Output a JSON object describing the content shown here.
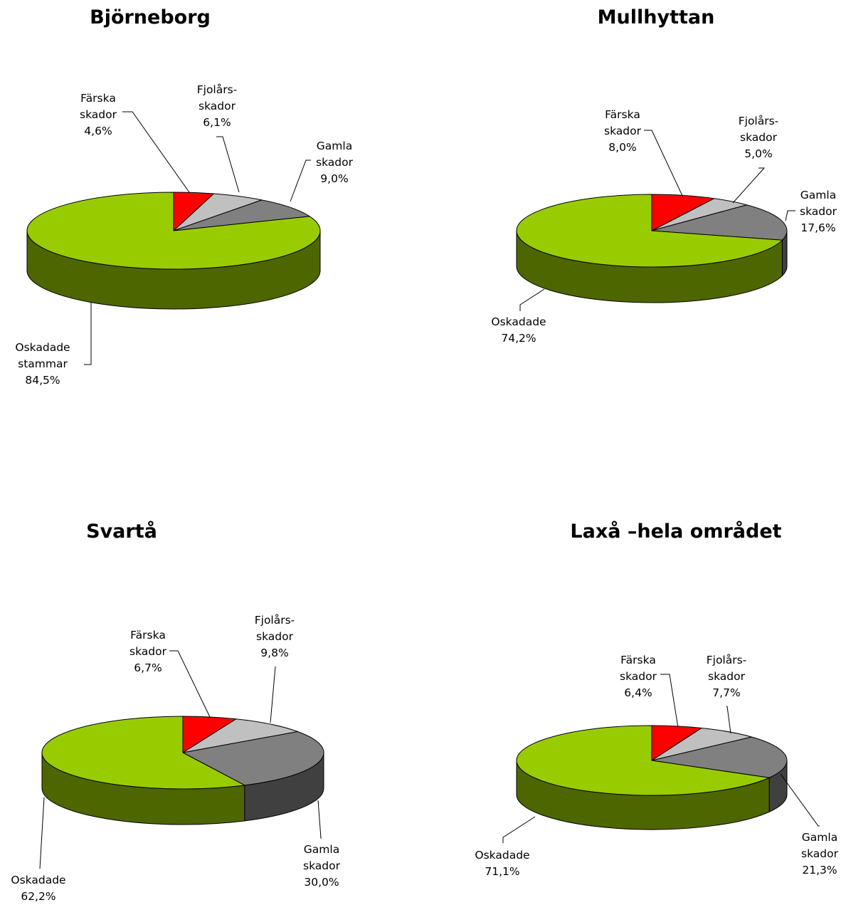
{
  "colors": {
    "fresh": "#ff0000",
    "last_year": "#c0c0c0",
    "old": "#808080",
    "undamaged": "#99cc00"
  },
  "chart_data": [
    {
      "type": "pie",
      "title": "Björneborg",
      "slices": [
        {
          "label": [
            "Färska",
            "skador"
          ],
          "value": 4.6,
          "value_label": "4,6%",
          "color_key": "fresh"
        },
        {
          "label": [
            "Fjolårs-",
            "skador"
          ],
          "value": 6.1,
          "value_label": "6,1%",
          "color_key": "last_year"
        },
        {
          "label": [
            "Gamla",
            "skador"
          ],
          "value": 9.0,
          "value_label": "9,0%",
          "color_key": "old"
        },
        {
          "label": [
            "Oskadade",
            "stammar"
          ],
          "value": 84.5,
          "value_label": "84,5%",
          "color_key": "undamaged"
        }
      ]
    },
    {
      "type": "pie",
      "title": "Mullhyttan",
      "slices": [
        {
          "label": [
            "Färska",
            "skador"
          ],
          "value": 8.0,
          "value_label": "8,0%",
          "color_key": "fresh"
        },
        {
          "label": [
            "Fjolårs-",
            "skador"
          ],
          "value": 5.0,
          "value_label": "5,0%",
          "color_key": "last_year"
        },
        {
          "label": [
            "Gamla",
            "skador"
          ],
          "value": 17.6,
          "value_label": "17,6%",
          "color_key": "old"
        },
        {
          "label": [
            "Oskadade"
          ],
          "value": 74.2,
          "value_label": "74,2%",
          "color_key": "undamaged"
        }
      ]
    },
    {
      "type": "pie",
      "title": "Svartå",
      "slices": [
        {
          "label": [
            "Färska",
            "skador"
          ],
          "value": 6.7,
          "value_label": "6,7%",
          "color_key": "fresh"
        },
        {
          "label": [
            "Fjolårs-",
            "skador"
          ],
          "value": 9.8,
          "value_label": "9,8%",
          "color_key": "last_year"
        },
        {
          "label": [
            "Gamla",
            "skador"
          ],
          "value": 30.0,
          "value_label": "30,0%",
          "color_key": "old"
        },
        {
          "label": [
            "Oskadade"
          ],
          "value": 62.2,
          "value_label": "62,2%",
          "color_key": "undamaged"
        }
      ]
    },
    {
      "type": "pie",
      "title": "Laxå –hela området",
      "slices": [
        {
          "label": [
            "Färska",
            "skador"
          ],
          "value": 6.4,
          "value_label": "6,4%",
          "color_key": "fresh"
        },
        {
          "label": [
            "Fjolårs-",
            "skador"
          ],
          "value": 7.7,
          "value_label": "7,7%",
          "color_key": "last_year"
        },
        {
          "label": [
            "Gamla",
            "skador"
          ],
          "value": 21.3,
          "value_label": "21,3%",
          "color_key": "old"
        },
        {
          "label": [
            "Oskadade"
          ],
          "value": 71.1,
          "value_label": "71,1%",
          "color_key": "undamaged"
        }
      ]
    }
  ]
}
